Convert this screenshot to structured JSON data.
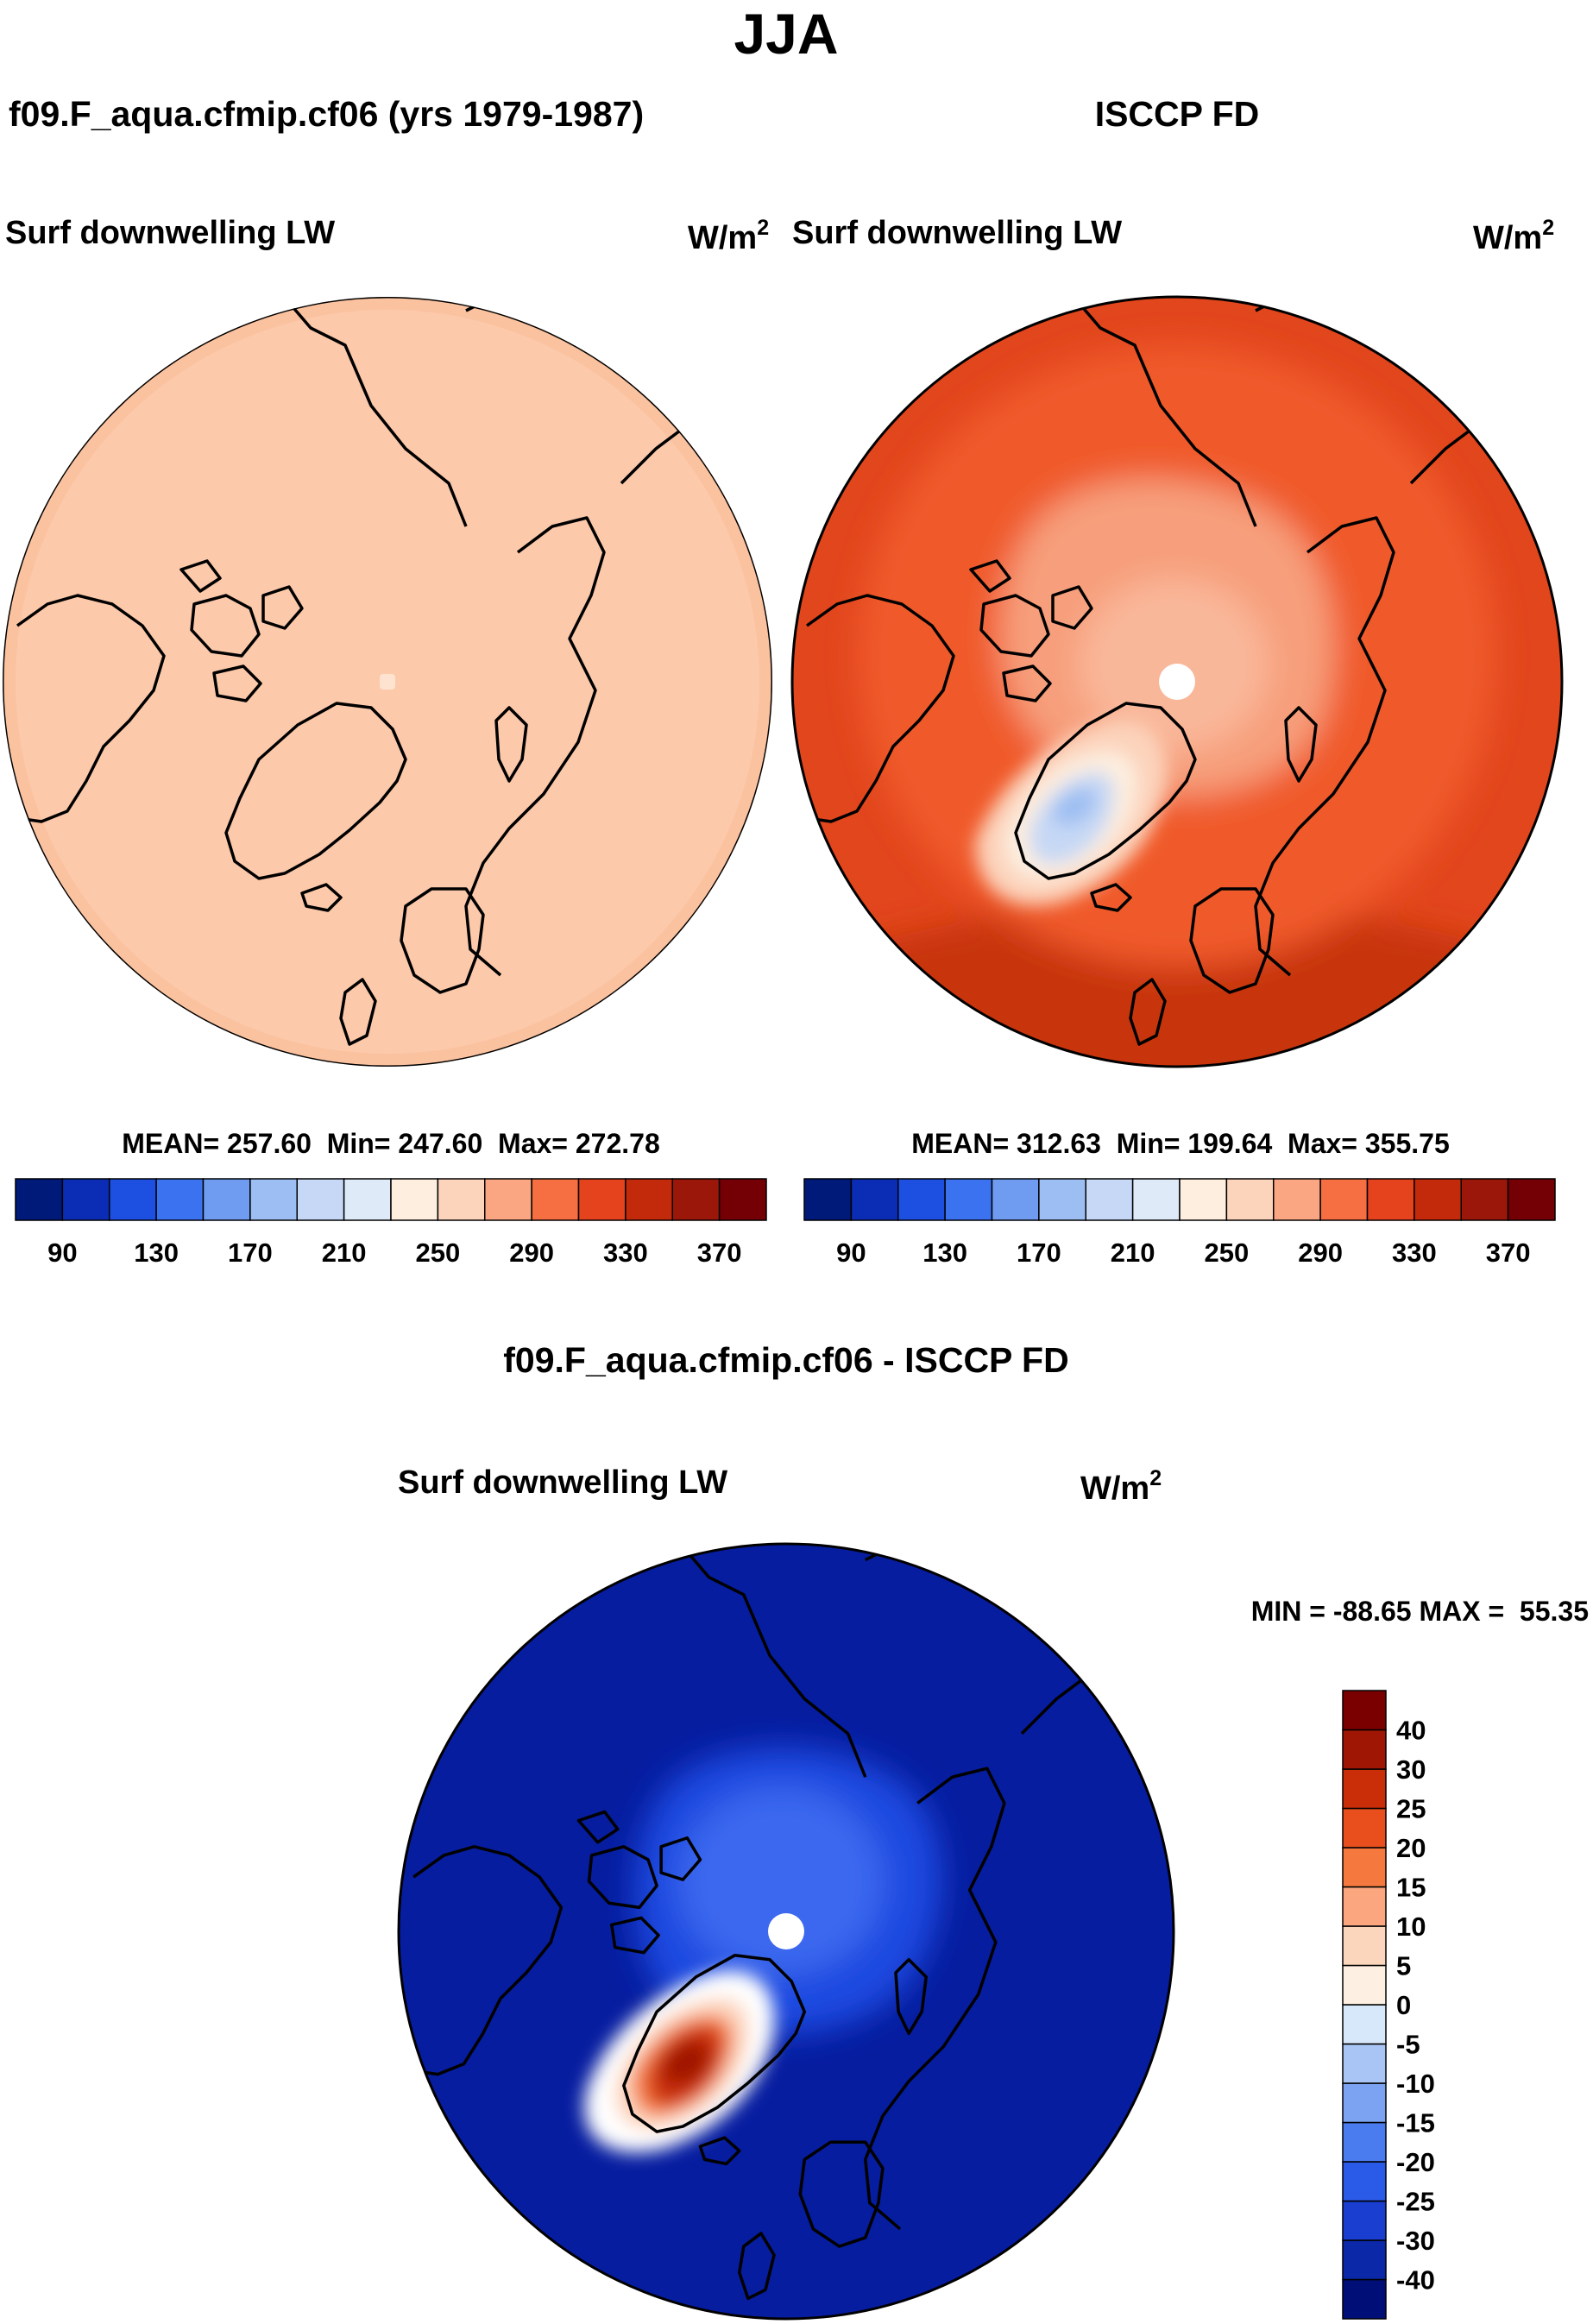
{
  "chart_data": {
    "type": "map",
    "season": "JJA",
    "panels": [
      {
        "id": "model",
        "title": "f09.F_aqua.cfmip.cf06 (yrs 1979-1987)",
        "variable": "Surf downwelling LW",
        "units_base": "W/m",
        "units_exp": "2",
        "stats": {
          "mean": 257.6,
          "min": 247.6,
          "max": 272.78
        },
        "stats_text": "MEAN= 257.60  Min= 247.60  Max= 272.78",
        "colorbar": {
          "levels": [
            90,
            110,
            130,
            150,
            170,
            190,
            210,
            230,
            250,
            270,
            290,
            310,
            330,
            350,
            370
          ],
          "tick_labels": [
            "90",
            "130",
            "170",
            "210",
            "250",
            "290",
            "330",
            "370"
          ],
          "colors": [
            "#001a7a",
            "#0b2db5",
            "#1d4fe0",
            "#3a72f0",
            "#6f9cf0",
            "#9dbef2",
            "#c6d8f5",
            "#deeaf8",
            "#fdeedf",
            "#fcd3bb",
            "#fba683",
            "#f56f42",
            "#e5421e",
            "#c32a0c",
            "#9a170a",
            "#740005"
          ]
        },
        "field": {
          "ring_inner": 0.965,
          "ring_color": "#fbc2a0",
          "base_color": "#fcc9ab",
          "features": [
            {
              "type": "pole_hole",
              "color": "#fee4d0"
            }
          ]
        }
      },
      {
        "id": "obs",
        "title": "ISCCP FD",
        "variable": "Surf downwelling LW",
        "units_base": "W/m",
        "units_exp": "2",
        "stats": {
          "mean": 312.63,
          "min": 199.64,
          "max": 355.75
        },
        "stats_text": "MEAN= 312.63  Min= 199.64  Max= 355.75",
        "colorbar": {
          "levels": [
            90,
            110,
            130,
            150,
            170,
            190,
            210,
            230,
            250,
            270,
            290,
            310,
            330,
            350,
            370
          ],
          "tick_labels": [
            "90",
            "130",
            "170",
            "210",
            "250",
            "290",
            "330",
            "370"
          ],
          "colors": [
            "#001a7a",
            "#0b2db5",
            "#1d4fe0",
            "#3a72f0",
            "#6f9cf0",
            "#9dbef2",
            "#c6d8f5",
            "#deeaf8",
            "#fdeedf",
            "#fcd3bb",
            "#fba683",
            "#f56f42",
            "#e5421e",
            "#c32a0c",
            "#9a170a",
            "#740005"
          ]
        },
        "field": {
          "base_color": "#e2461d",
          "features": [
            {
              "type": "rim",
              "color": "#c8360f"
            },
            {
              "type": "inner",
              "color": "#f05a2a"
            },
            {
              "type": "arctic",
              "color": "#f79f7c"
            },
            {
              "type": "arctic_core",
              "color": "#f9b79a"
            },
            {
              "type": "greenland",
              "colors": [
                "#fcd3bb",
                "#fdeedf",
                "#c6d8f5",
                "#9dbef2"
              ]
            },
            {
              "type": "pole_hole",
              "color": "#ffffff"
            }
          ]
        }
      },
      {
        "id": "diff",
        "title": "f09.F_aqua.cfmip.cf06 - ISCCP FD",
        "variable": "Surf downwelling LW",
        "units_base": "W/m",
        "units_exp": "2",
        "stats": {
          "min": -88.65,
          "max": 55.35
        },
        "stats_text": "MIN = -88.65 MAX =  55.35",
        "colorbar": {
          "levels": [
            -40,
            -30,
            -25,
            -20,
            -15,
            -10,
            -5,
            0,
            5,
            10,
            15,
            20,
            25,
            30,
            40
          ],
          "tick_labels": [
            "-40",
            "-30",
            "-25",
            "-20",
            "-15",
            "-10",
            "-5",
            "0",
            "5",
            "10",
            "15",
            "20",
            "25",
            "30",
            "40"
          ],
          "colors": [
            "#000f78",
            "#0a28a8",
            "#1a3ed0",
            "#2a5ae8",
            "#4a7cf0",
            "#7ba3f2",
            "#a9c5f5",
            "#d8e8fb",
            "#fdf0e2",
            "#fcd5bd",
            "#fba67e",
            "#f5783e",
            "#e84f1d",
            "#c92e08",
            "#a01605",
            "#7a0000"
          ]
        },
        "field": {
          "base_color": "#061da0",
          "features": [
            {
              "type": "arctic",
              "color": "#1d4ae0"
            },
            {
              "type": "arctic_core",
              "color": "#3a68ee"
            },
            {
              "type": "greenland",
              "colors": [
                "#ffffff",
                "#fcd5bd",
                "#f5783e",
                "#c92e08",
                "#a01605"
              ]
            },
            {
              "type": "pole_hole",
              "color": "#ffffff"
            }
          ]
        }
      }
    ]
  }
}
